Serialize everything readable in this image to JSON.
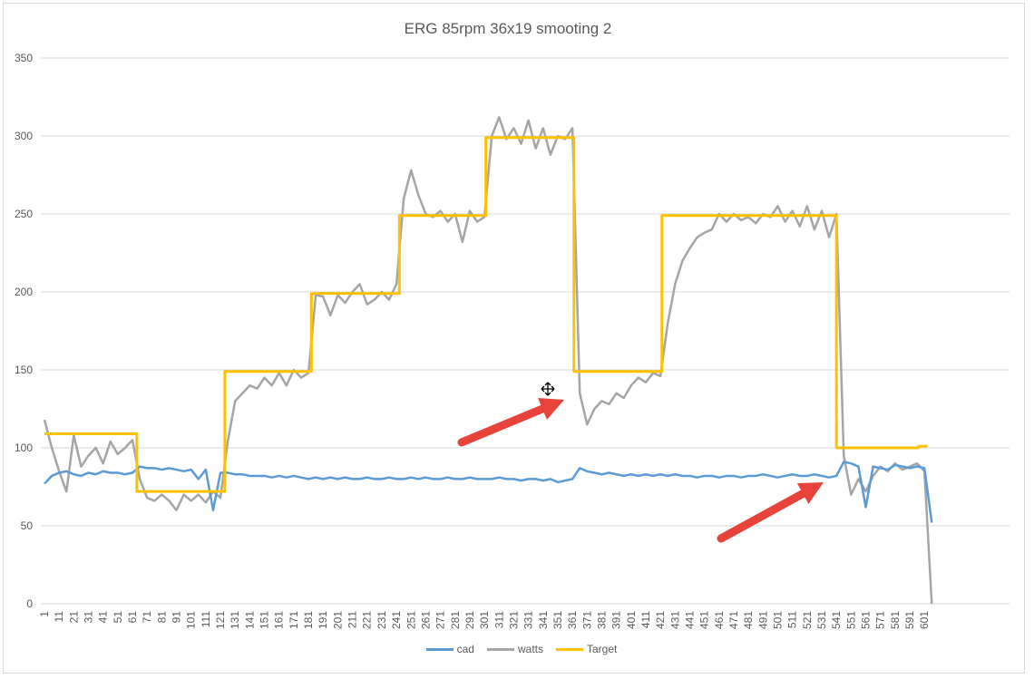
{
  "chart_data": {
    "type": "line",
    "title": "ERG 85rpm 36x19  smooting 2",
    "xlabel": "",
    "ylabel": "",
    "ylim": [
      0,
      350
    ],
    "yticks": [
      "0",
      "50",
      "100",
      "150",
      "200",
      "250",
      "300",
      "350"
    ],
    "ytick_values": [
      0,
      50,
      100,
      150,
      200,
      250,
      300,
      350
    ],
    "xlim": [
      1,
      662
    ],
    "xticks": [
      "1",
      "11",
      "21",
      "31",
      "41",
      "51",
      "61",
      "71",
      "81",
      "91",
      "101",
      "111",
      "121",
      "131",
      "141",
      "151",
      "161",
      "171",
      "181",
      "191",
      "201",
      "211",
      "221",
      "231",
      "241",
      "251",
      "261",
      "271",
      "281",
      "291",
      "301",
      "311",
      "321",
      "331",
      "341",
      "351",
      "361",
      "371",
      "381",
      "391",
      "401",
      "411",
      "421",
      "431",
      "441",
      "451",
      "461",
      "471",
      "481",
      "491",
      "501",
      "511",
      "521",
      "531",
      "541",
      "551",
      "561",
      "571",
      "581",
      "591",
      "601"
    ],
    "grid": true,
    "legend_position": "bottom",
    "x_sample_start": 1,
    "x_sample_step": 5,
    "series": [
      {
        "name": "cad",
        "color": "#5b9bd5",
        "values": [
          77,
          82,
          84,
          85,
          83,
          82,
          84,
          83,
          85,
          84,
          84,
          83,
          84,
          88,
          87,
          87,
          86,
          87,
          86,
          85,
          86,
          80,
          86,
          60,
          84,
          84,
          83,
          83,
          82,
          82,
          82,
          81,
          82,
          81,
          82,
          81,
          80,
          81,
          80,
          81,
          80,
          81,
          80,
          80,
          81,
          80,
          80,
          81,
          80,
          80,
          81,
          80,
          81,
          80,
          80,
          81,
          80,
          80,
          81,
          80,
          80,
          80,
          81,
          80,
          80,
          79,
          80,
          80,
          79,
          80,
          78,
          79,
          80,
          87,
          85,
          84,
          83,
          84,
          83,
          82,
          83,
          82,
          83,
          82,
          83,
          82,
          83,
          82,
          82,
          81,
          82,
          82,
          81,
          82,
          82,
          81,
          82,
          82,
          83,
          82,
          81,
          82,
          83,
          82,
          82,
          83,
          82,
          81,
          82,
          91,
          90,
          88,
          62,
          88,
          87,
          86,
          89,
          88,
          87,
          88,
          87,
          52
        ]
      },
      {
        "name": "watts",
        "color": "#a5a5a5",
        "values": [
          118,
          100,
          85,
          72,
          108,
          88,
          95,
          100,
          90,
          104,
          96,
          100,
          105,
          80,
          68,
          66,
          70,
          66,
          60,
          70,
          66,
          70,
          65,
          72,
          68,
          104,
          130,
          135,
          140,
          138,
          145,
          140,
          148,
          140,
          150,
          145,
          148,
          198,
          197,
          185,
          198,
          193,
          200,
          205,
          192,
          195,
          200,
          195,
          205,
          260,
          278,
          262,
          250,
          248,
          252,
          245,
          250,
          232,
          252,
          245,
          248,
          300,
          312,
          298,
          305,
          295,
          310,
          292,
          305,
          288,
          300,
          298,
          305,
          135,
          115,
          125,
          130,
          128,
          135,
          132,
          140,
          145,
          142,
          148,
          146,
          180,
          205,
          220,
          228,
          235,
          238,
          240,
          250,
          245,
          250,
          246,
          248,
          244,
          250,
          248,
          255,
          245,
          252,
          242,
          255,
          240,
          252,
          235,
          250,
          95,
          70,
          80,
          72,
          82,
          88,
          85,
          90,
          86,
          88,
          90,
          85,
          0
        ]
      },
      {
        "name": "Target",
        "color": "#ffc000",
        "steps": [
          {
            "start": 1,
            "value": 109
          },
          {
            "start": 64,
            "value": 72
          },
          {
            "start": 124,
            "value": 149
          },
          {
            "start": 183,
            "value": 199
          },
          {
            "start": 243,
            "value": 249
          },
          {
            "start": 302,
            "value": 299
          },
          {
            "start": 362,
            "value": 149
          },
          {
            "start": 422,
            "value": 249
          },
          {
            "start": 541,
            "value": 100
          },
          {
            "start": 597,
            "value": 101
          }
        ],
        "end": 603
      }
    ],
    "annotation_color": "#e8433a"
  }
}
